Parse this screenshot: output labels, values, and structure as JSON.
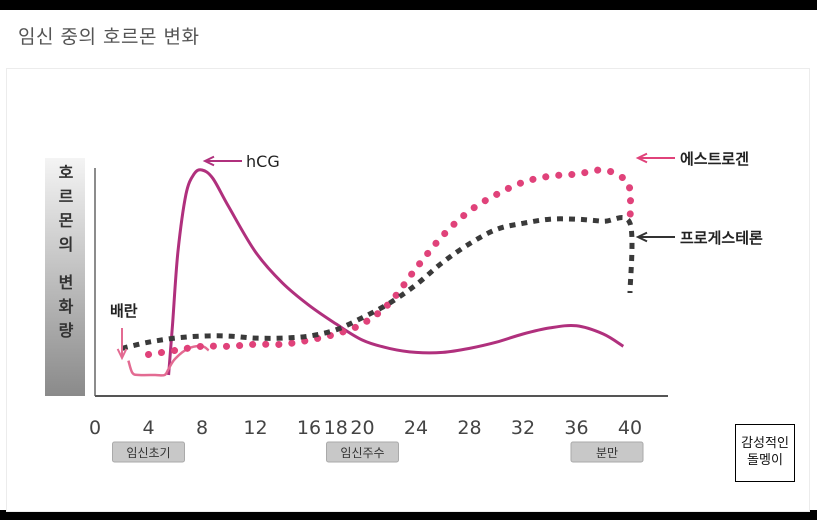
{
  "page": {
    "title": "임신 중의 호르몬 변화"
  },
  "watermark": {
    "line1": "감성적인",
    "line2": "돌멩이"
  },
  "chart_data": {
    "type": "line",
    "title": "임신 중의 호르몬 변화",
    "ylabel": "호르몬의 변화량",
    "ylabel_chars": [
      "호",
      "르",
      "몬",
      "의",
      "",
      "변",
      "화",
      "량"
    ],
    "xlabel": "",
    "x_ticks": [
      {
        "value": 0,
        "label": "0"
      },
      {
        "value": 4,
        "label": "4"
      },
      {
        "value": 8,
        "label": "8"
      },
      {
        "value": 12,
        "label": "12"
      },
      {
        "value": 16,
        "label": "16"
      },
      {
        "value": 18,
        "label": "18"
      },
      {
        "value": 20,
        "label": "20"
      },
      {
        "value": 24,
        "label": "24"
      },
      {
        "value": 28,
        "label": "28"
      },
      {
        "value": 32,
        "label": "32"
      },
      {
        "value": 36,
        "label": "36"
      },
      {
        "value": 40,
        "label": "40"
      }
    ],
    "xlim": [
      0,
      40
    ],
    "ylim": [
      0,
      100
    ],
    "grid": false,
    "stage_labels": [
      {
        "text": "임신초기",
        "x": 4
      },
      {
        "text": "임신주수",
        "x": 20
      },
      {
        "text": "분만",
        "x": 40
      }
    ],
    "ovulation": {
      "label": "배란",
      "x": 2.5
    },
    "series": [
      {
        "name": "hCG",
        "color": "#b0307d",
        "style": "solid",
        "points": [
          [
            5.5,
            0
          ],
          [
            5.8,
            25
          ],
          [
            6.2,
            60
          ],
          [
            6.8,
            88
          ],
          [
            7.4,
            98
          ],
          [
            8.0,
            100
          ],
          [
            8.8,
            96
          ],
          [
            10,
            82
          ],
          [
            12,
            60
          ],
          [
            14,
            45
          ],
          [
            16,
            34
          ],
          [
            18,
            25
          ],
          [
            20,
            17
          ],
          [
            22,
            13
          ],
          [
            24,
            11
          ],
          [
            26,
            11
          ],
          [
            28,
            13
          ],
          [
            30,
            16
          ],
          [
            32,
            20
          ],
          [
            34,
            23
          ],
          [
            36,
            24
          ],
          [
            38,
            20
          ],
          [
            39.5,
            14
          ]
        ]
      },
      {
        "name": "",
        "color": "#e36b92",
        "style": "solid",
        "points": [
          [
            2.5,
            7
          ],
          [
            2.8,
            1
          ],
          [
            3.3,
            0
          ],
          [
            4.5,
            0
          ],
          [
            5.2,
            0
          ],
          [
            5.5,
            3
          ],
          [
            6.0,
            8
          ],
          [
            7.0,
            13
          ],
          [
            8.0,
            14
          ],
          [
            8.5,
            12
          ]
        ],
        "note": "early low-level curve before hCG rise"
      },
      {
        "name": "에스트로겐",
        "color": "#e0427a",
        "style": "dotted",
        "points": [
          [
            4,
            10
          ],
          [
            6,
            12
          ],
          [
            8,
            14
          ],
          [
            10,
            14
          ],
          [
            12,
            15
          ],
          [
            14,
            15
          ],
          [
            16,
            17
          ],
          [
            18,
            20
          ],
          [
            20,
            25
          ],
          [
            22,
            35
          ],
          [
            24,
            52
          ],
          [
            26,
            68
          ],
          [
            28,
            80
          ],
          [
            30,
            88
          ],
          [
            32,
            94
          ],
          [
            34,
            97
          ],
          [
            36,
            98
          ],
          [
            38,
            100
          ],
          [
            39.5,
            96
          ],
          [
            40,
            90
          ],
          [
            40,
            74
          ]
        ]
      },
      {
        "name": "프로게스테론",
        "color": "#3a3a3a",
        "style": "dashed",
        "points": [
          [
            2,
            13
          ],
          [
            4,
            16
          ],
          [
            6,
            18
          ],
          [
            8,
            19
          ],
          [
            10,
            19
          ],
          [
            12,
            18
          ],
          [
            14,
            18
          ],
          [
            16,
            19
          ],
          [
            18,
            22
          ],
          [
            20,
            28
          ],
          [
            22,
            35
          ],
          [
            24,
            44
          ],
          [
            26,
            55
          ],
          [
            28,
            64
          ],
          [
            30,
            71
          ],
          [
            32,
            74
          ],
          [
            34,
            76
          ],
          [
            36,
            76
          ],
          [
            38,
            75
          ],
          [
            40,
            74
          ],
          [
            40,
            40
          ]
        ]
      }
    ],
    "annotations": [
      {
        "text": "hCG",
        "series": "hCG"
      },
      {
        "text": "에스트로겐",
        "series": "에스트로겐"
      },
      {
        "text": "프로게스테론",
        "series": "프로게스테론"
      },
      {
        "text": "배란",
        "series": ""
      }
    ]
  }
}
